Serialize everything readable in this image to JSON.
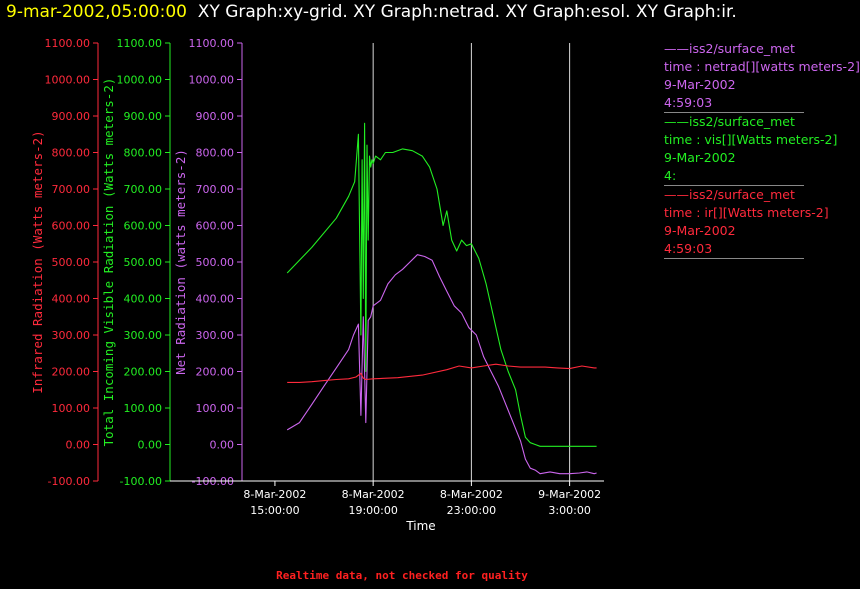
{
  "header": {
    "timestamp": "9-mar-2002,05:00:00",
    "graphs": "XY Graph:xy-grid.  XY Graph:netrad.  XY Graph:esol.  XY Graph:ir."
  },
  "footer_text": "Realtime data, not checked for quality",
  "colors": {
    "background": "#000000",
    "ir": "#ff2a3c",
    "vis": "#22ee22",
    "net": "#cc66ee",
    "axis": "#ffffff"
  },
  "legend": [
    {
      "source": "iss2/surface_met",
      "var": "time : netrad[][watts meters-2]",
      "date": "9-Mar-2002",
      "time": "4:59:03",
      "color": "#cc66ee"
    },
    {
      "source": "iss2/surface_met",
      "var": "time : vis[][Watts meters-2]",
      "date": "9-Mar-2002",
      "time": "4:",
      "color": "#22ee22"
    },
    {
      "source": "iss2/surface_met",
      "var": "time : ir[][Watts meters-2]",
      "date": "9-Mar-2002",
      "time": "4:59:03",
      "color": "#ff2a3c"
    }
  ],
  "chart_data": {
    "type": "line",
    "xlabel": "Time",
    "x_ticks": [
      {
        "date": "8-Mar-2002",
        "time": "15:00:00",
        "hours": 15
      },
      {
        "date": "8-Mar-2002",
        "time": "19:00:00",
        "hours": 19
      },
      {
        "date": "8-Mar-2002",
        "time": "23:00:00",
        "hours": 23
      },
      {
        "date": "9-Mar-2002",
        "time": "3:00:00",
        "hours": 27
      }
    ],
    "xlim_hours": [
      13.7,
      28.4
    ],
    "y_axes": [
      {
        "label": "Infrared Radiation (Watts meters-2)",
        "color": "#ff2a3c"
      },
      {
        "label": "Total Incoming Visible Radiation (Watts meters-2)",
        "color": "#22ee22"
      },
      {
        "label": "Net Radiation (watts meters-2)",
        "color": "#cc66ee"
      }
    ],
    "ylim": [
      -100,
      1100
    ],
    "y_ticks": [
      "-100.00",
      "0.00",
      "100.00",
      "200.00",
      "300.00",
      "400.00",
      "500.00",
      "600.00",
      "700.00",
      "800.00",
      "900.00",
      "1000.00",
      "1100.00"
    ],
    "grid_x_hours": [
      19,
      23,
      27
    ],
    "series": [
      {
        "name": "vis",
        "color": "#22ee22",
        "x": [
          15.5,
          16.5,
          17.5,
          18.0,
          18.25,
          18.4,
          18.5,
          18.55,
          18.6,
          18.65,
          18.7,
          18.75,
          18.8,
          18.85,
          18.9,
          18.95,
          19.0,
          19.1,
          19.3,
          19.5,
          19.8,
          20.2,
          20.6,
          21.0,
          21.3,
          21.6,
          21.85,
          22.0,
          22.2,
          22.4,
          22.6,
          22.8,
          23.0,
          23.3,
          23.6,
          23.9,
          24.2,
          24.5,
          24.8,
          25.0,
          25.2,
          25.4,
          25.6,
          25.8,
          26.0,
          26.5,
          27.0,
          27.5,
          28.0,
          28.1
        ],
        "y": [
          470,
          540,
          620,
          680,
          720,
          850,
          300,
          780,
          400,
          880,
          200,
          820,
          560,
          790,
          760,
          780,
          770,
          790,
          780,
          800,
          800,
          810,
          805,
          790,
          760,
          700,
          600,
          640,
          560,
          530,
          560,
          545,
          550,
          510,
          440,
          350,
          260,
          200,
          150,
          80,
          20,
          5,
          0,
          -5,
          -5,
          -5,
          -5,
          -5,
          -5,
          -5
        ]
      },
      {
        "name": "netrad",
        "color": "#cc66ee",
        "x": [
          15.5,
          16.0,
          16.5,
          17.0,
          17.5,
          18.0,
          18.2,
          18.4,
          18.5,
          18.6,
          18.7,
          18.8,
          18.9,
          19.0,
          19.3,
          19.6,
          19.9,
          20.2,
          20.5,
          20.8,
          21.1,
          21.4,
          21.7,
          22.0,
          22.3,
          22.6,
          22.9,
          23.2,
          23.5,
          23.8,
          24.1,
          24.4,
          24.7,
          25.0,
          25.2,
          25.4,
          25.6,
          25.8,
          26.2,
          26.6,
          27.0,
          27.4,
          27.7,
          28.0,
          28.1
        ],
        "y": [
          40,
          60,
          110,
          160,
          210,
          260,
          300,
          330,
          80,
          350,
          60,
          340,
          350,
          380,
          395,
          440,
          465,
          480,
          500,
          520,
          515,
          505,
          460,
          420,
          380,
          360,
          320,
          300,
          240,
          200,
          160,
          110,
          60,
          10,
          -40,
          -65,
          -70,
          -80,
          -75,
          -80,
          -80,
          -78,
          -75,
          -80,
          -78
        ]
      },
      {
        "name": "ir",
        "color": "#ff2a3c",
        "x": [
          15.5,
          16.0,
          16.5,
          17.0,
          17.5,
          18.0,
          18.3,
          18.5,
          18.6,
          18.7,
          19.0,
          20.0,
          21.0,
          22.0,
          22.5,
          23.0,
          23.5,
          24.0,
          24.5,
          25.0,
          25.5,
          26.0,
          26.5,
          27.0,
          27.5,
          28.0,
          28.1
        ],
        "y": [
          170,
          170,
          172,
          175,
          178,
          180,
          185,
          195,
          182,
          178,
          180,
          183,
          190,
          205,
          215,
          210,
          215,
          220,
          215,
          212,
          212,
          212,
          210,
          208,
          215,
          210,
          210
        ]
      }
    ]
  }
}
